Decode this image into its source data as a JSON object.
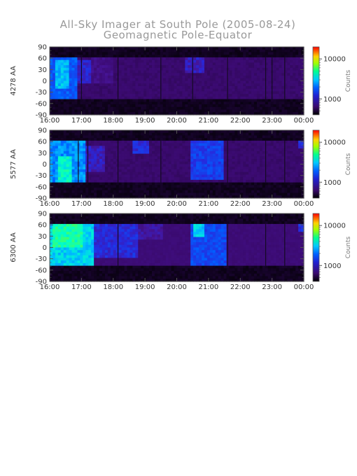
{
  "title_line1": "All-Sky Imager at South Pole (2005-08-24)",
  "title_line2": "Geomagnetic Pole-Equator",
  "chart_data": [
    {
      "type": "heatmap",
      "ylabel": "4278 AA",
      "colorbar_label": "Counts",
      "colorbar_ticks": [
        1000,
        10000
      ],
      "colorbar_tick_labels": [
        "1000",
        "10000"
      ],
      "x_tick_labels": [
        "16:00",
        "17:00",
        "18:00",
        "19:00",
        "20:00",
        "21:00",
        "22:00",
        "23:00",
        "00:00"
      ],
      "y_ticks": [
        90,
        60,
        30,
        0,
        -30,
        -60,
        -90
      ],
      "y_tick_labels": [
        "90",
        "60",
        "30",
        "0",
        "-30",
        "-60",
        "-90"
      ],
      "xlim_hours": [
        16,
        24
      ],
      "ylim": [
        -90,
        90
      ],
      "data_lat_range": [
        -50,
        62
      ],
      "background_level": 0.12,
      "blobs": [
        {
          "t0": 16.0,
          "t1": 16.9,
          "lat0": -48,
          "lat1": 62,
          "level": 0.38
        },
        {
          "t0": 16.2,
          "t1": 16.6,
          "lat0": -20,
          "lat1": 55,
          "level": 0.48
        },
        {
          "t0": 16.9,
          "t1": 17.3,
          "lat0": -10,
          "lat1": 58,
          "level": 0.28
        },
        {
          "t0": 20.3,
          "t1": 20.9,
          "lat0": 20,
          "lat1": 62,
          "level": 0.26
        },
        {
          "t0": 17.3,
          "t1": 18.0,
          "lat0": -10,
          "lat1": 60,
          "level": 0.18
        }
      ],
      "dark_columns_hours": [
        17.0,
        18.15,
        19.5,
        20.5,
        21.6,
        22.8,
        23.0,
        23.4
      ]
    },
    {
      "type": "heatmap",
      "ylabel": "5577 AA",
      "colorbar_label": "Counts",
      "colorbar_ticks": [
        1000,
        10000
      ],
      "colorbar_tick_labels": [
        "1000",
        "10000"
      ],
      "x_tick_labels": [
        "16:00",
        "17:00",
        "18:00",
        "19:00",
        "20:00",
        "21:00",
        "22:00",
        "23:00",
        "00:00"
      ],
      "y_ticks": [
        90,
        60,
        30,
        0,
        -30,
        -60,
        -90
      ],
      "y_tick_labels": [
        "90",
        "60",
        "30",
        "0",
        "-30",
        "-60",
        "-90"
      ],
      "xlim_hours": [
        16,
        24
      ],
      "ylim": [
        -90,
        90
      ],
      "data_lat_range": [
        -50,
        62
      ],
      "background_level": 0.12,
      "blobs": [
        {
          "t0": 16.0,
          "t1": 17.1,
          "lat0": -50,
          "lat1": 62,
          "level": 0.44
        },
        {
          "t0": 16.3,
          "t1": 16.7,
          "lat0": -55,
          "lat1": 20,
          "level": 0.55
        },
        {
          "t0": 17.1,
          "t1": 17.7,
          "lat0": -20,
          "lat1": 50,
          "level": 0.26
        },
        {
          "t0": 18.6,
          "t1": 19.1,
          "lat0": 30,
          "lat1": 62,
          "level": 0.3
        },
        {
          "t0": 20.4,
          "t1": 21.5,
          "lat0": -40,
          "lat1": 62,
          "level": 0.34
        },
        {
          "t0": 23.8,
          "t1": 24.0,
          "lat0": 40,
          "lat1": 62,
          "level": 0.3
        }
      ],
      "dark_columns_hours": [
        16.9,
        17.2,
        18.15,
        19.5,
        21.6,
        22.8,
        23.4
      ]
    },
    {
      "type": "heatmap",
      "ylabel": "6300 AA",
      "colorbar_label": "Counts",
      "colorbar_ticks": [
        1000,
        10000
      ],
      "colorbar_tick_labels": [
        "1000",
        "10000"
      ],
      "x_tick_labels": [
        "16:00",
        "17:00",
        "18:00",
        "19:00",
        "20:00",
        "21:00",
        "22:00",
        "23:00",
        "00:00"
      ],
      "y_ticks": [
        90,
        60,
        30,
        0,
        -30,
        -60,
        -90
      ],
      "y_tick_labels": [
        "90",
        "60",
        "30",
        "0",
        "-30",
        "-60",
        "-90"
      ],
      "xlim_hours": [
        16,
        24
      ],
      "ylim": [
        -90,
        90
      ],
      "data_lat_range": [
        -50,
        62
      ],
      "background_level": 0.14,
      "blobs": [
        {
          "t0": 16.0,
          "t1": 17.4,
          "lat0": -48,
          "lat1": 62,
          "level": 0.5
        },
        {
          "t0": 16.1,
          "t1": 17.0,
          "lat0": 0,
          "lat1": 62,
          "level": 0.58
        },
        {
          "t0": 17.4,
          "t1": 18.8,
          "lat0": -30,
          "lat1": 62,
          "level": 0.3
        },
        {
          "t0": 18.8,
          "t1": 19.6,
          "lat0": 20,
          "lat1": 62,
          "level": 0.22
        },
        {
          "t0": 20.4,
          "t1": 21.6,
          "lat0": -45,
          "lat1": 62,
          "level": 0.36
        },
        {
          "t0": 20.5,
          "t1": 20.9,
          "lat0": 30,
          "lat1": 62,
          "level": 0.5
        },
        {
          "t0": 23.8,
          "t1": 24.0,
          "lat0": 40,
          "lat1": 62,
          "level": 0.3
        }
      ],
      "dark_columns_hours": [
        18.15,
        21.6,
        22.8,
        23.4
      ]
    }
  ]
}
